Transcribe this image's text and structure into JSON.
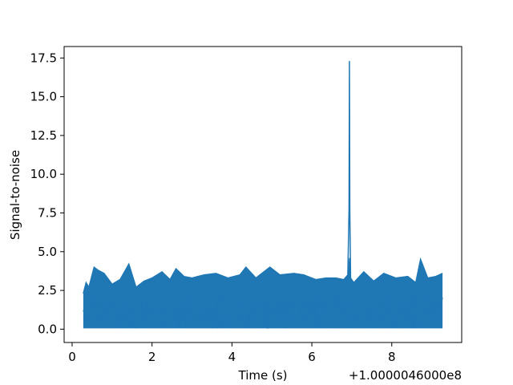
{
  "chart_data": {
    "type": "line",
    "title": "",
    "xlabel": "Time (s)",
    "ylabel": "Signal-to-noise",
    "x_offset_label": "+1.0000046000e8",
    "xlim": [
      -0.2,
      9.75
    ],
    "ylim": [
      -0.86,
      18.24
    ],
    "x_ticks": [
      0,
      2,
      4,
      6,
      8
    ],
    "y_ticks": [
      0.0,
      2.5,
      5.0,
      7.5,
      10.0,
      12.5,
      15.0,
      17.5
    ],
    "x_tick_labels": [
      "0",
      "2",
      "4",
      "6",
      "8"
    ],
    "y_tick_labels": [
      "0.0",
      "2.5",
      "5.0",
      "7.5",
      "10.0",
      "12.5",
      "15.0",
      "17.5"
    ],
    "grid": false,
    "legend": "none",
    "series": [
      {
        "color": "#1f77b4",
        "x": [
          0.28,
          0.35,
          0.42,
          0.55,
          0.65,
          0.8,
          1.0,
          1.2,
          1.42,
          1.6,
          1.8,
          2.0,
          2.25,
          2.45,
          2.6,
          2.8,
          3.0,
          3.3,
          3.6,
          3.9,
          4.2,
          4.35,
          4.6,
          4.95,
          5.2,
          5.55,
          5.8,
          6.1,
          6.35,
          6.6,
          6.8,
          6.9,
          6.93,
          6.94,
          6.95,
          6.97,
          7.05,
          7.3,
          7.55,
          7.8,
          8.1,
          8.4,
          8.6,
          8.72,
          8.9,
          9.1,
          9.27
        ],
        "y": [
          2.3,
          3.0,
          2.7,
          4.0,
          3.8,
          3.6,
          2.9,
          3.2,
          4.2,
          2.7,
          3.1,
          3.3,
          3.7,
          3.2,
          3.9,
          3.4,
          3.3,
          3.5,
          3.6,
          3.3,
          3.5,
          4.0,
          3.3,
          4.0,
          3.5,
          3.6,
          3.5,
          3.2,
          3.3,
          3.3,
          3.2,
          3.5,
          7.7,
          17.3,
          7.6,
          3.3,
          3.0,
          3.7,
          3.1,
          3.6,
          3.3,
          3.4,
          3.0,
          4.5,
          3.3,
          3.4,
          3.6
        ],
        "y_min_envelope": 0.05
      }
    ]
  }
}
